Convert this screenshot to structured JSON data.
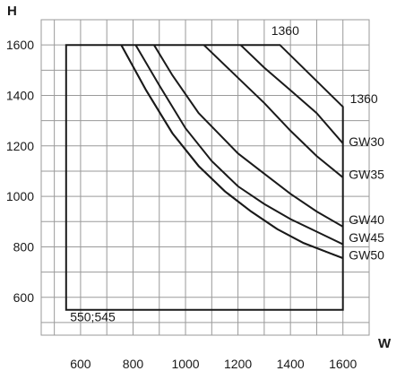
{
  "chart_data": {
    "type": "line",
    "title": "",
    "xlabel": "W",
    "ylabel": "H",
    "xlim": [
      450,
      1700
    ],
    "ylim": [
      450,
      1700
    ],
    "x_ticks": [
      600,
      800,
      1000,
      1200,
      1400,
      1600
    ],
    "y_ticks": [
      600,
      800,
      1000,
      1200,
      1400,
      1600
    ],
    "grid": true,
    "envelope": {
      "points": [
        [
          545,
          550
        ],
        [
          545,
          1600
        ],
        [
          1360,
          1600
        ],
        [
          1600,
          1355
        ],
        [
          1600,
          550
        ]
      ]
    },
    "series": [
      {
        "name": "1360",
        "points": [
          [
            1210,
            1600
          ],
          [
            1300,
            1510
          ],
          [
            1400,
            1420
          ],
          [
            1500,
            1330
          ],
          [
            1600,
            1210
          ]
        ]
      },
      {
        "name": "GW30",
        "points": [
          [
            1070,
            1600
          ],
          [
            1200,
            1470
          ],
          [
            1300,
            1370
          ],
          [
            1400,
            1260
          ],
          [
            1500,
            1160
          ],
          [
            1600,
            1075
          ]
        ]
      },
      {
        "name": "GW35",
        "points": [
          [
            880,
            1600
          ],
          [
            950,
            1480
          ],
          [
            1050,
            1330
          ],
          [
            1200,
            1170
          ],
          [
            1300,
            1090
          ],
          [
            1400,
            1010
          ],
          [
            1500,
            940
          ],
          [
            1600,
            880
          ]
        ]
      },
      {
        "name": "GW40",
        "points": [
          [
            810,
            1600
          ],
          [
            900,
            1440
          ],
          [
            1000,
            1270
          ],
          [
            1100,
            1140
          ],
          [
            1200,
            1040
          ],
          [
            1300,
            970
          ],
          [
            1400,
            910
          ],
          [
            1500,
            860
          ],
          [
            1600,
            810
          ]
        ]
      },
      {
        "name": "GW45",
        "points": [
          [
            755,
            1600
          ],
          [
            850,
            1420
          ],
          [
            950,
            1250
          ],
          [
            1050,
            1120
          ],
          [
            1150,
            1020
          ],
          [
            1250,
            940
          ],
          [
            1350,
            870
          ],
          [
            1450,
            815
          ],
          [
            1550,
            775
          ],
          [
            1600,
            755
          ]
        ]
      },
      {
        "name": "GW50",
        "points": [
          [
            755,
            1600
          ],
          [
            850,
            1420
          ],
          [
            950,
            1250
          ],
          [
            1050,
            1120
          ],
          [
            1150,
            1020
          ],
          [
            1250,
            940
          ],
          [
            1350,
            870
          ],
          [
            1450,
            815
          ],
          [
            1550,
            775
          ],
          [
            1600,
            755
          ]
        ]
      }
    ],
    "annotations": [
      {
        "text": "1360",
        "at": [
          1380,
          1640
        ]
      },
      {
        "text": "1360",
        "at": [
          1680,
          1370
        ]
      },
      {
        "text": "GW30",
        "at": [
          1690,
          1200
        ]
      },
      {
        "text": "GW35",
        "at": [
          1690,
          1070
        ]
      },
      {
        "text": "GW40",
        "at": [
          1690,
          890
        ]
      },
      {
        "text": "GW45",
        "at": [
          1690,
          820
        ]
      },
      {
        "text": "GW50",
        "at": [
          1690,
          750
        ]
      },
      {
        "text": "550;545",
        "at": [
          560,
          505
        ]
      }
    ]
  }
}
